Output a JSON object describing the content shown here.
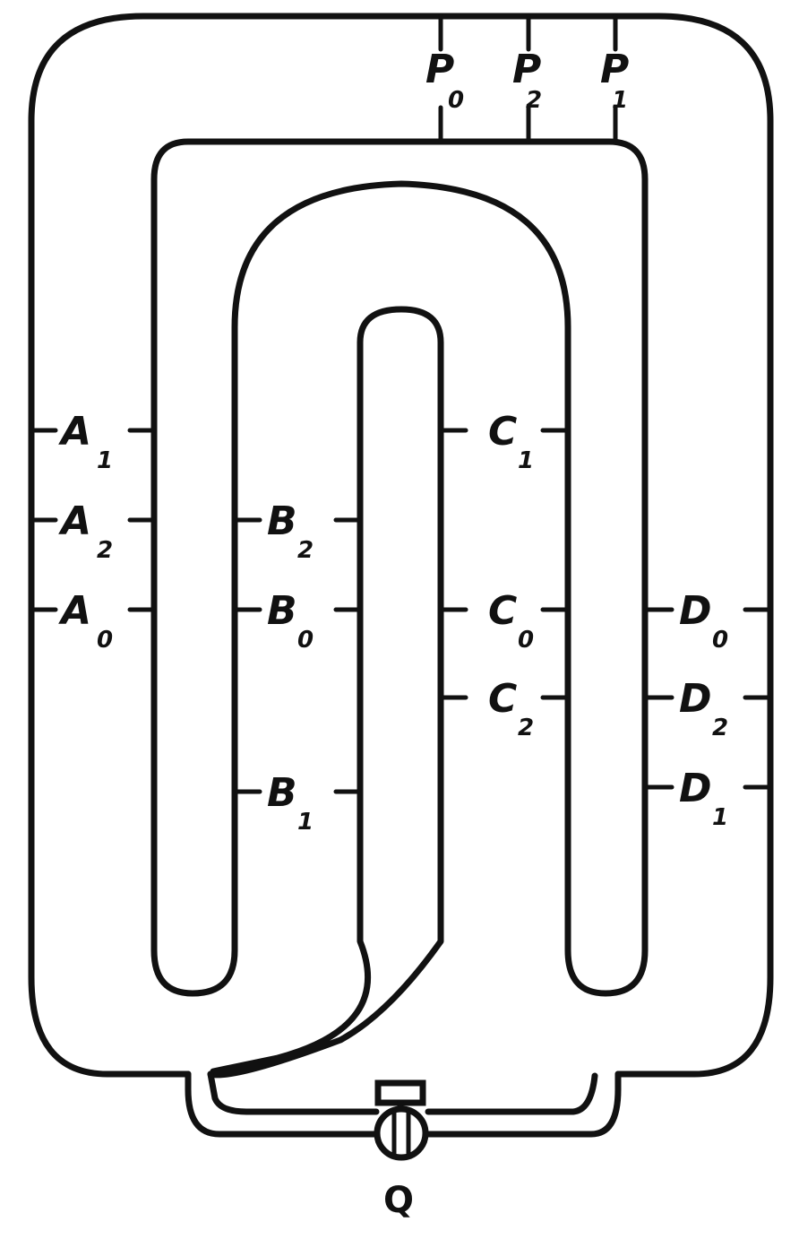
{
  "diagram": {
    "top_labels": [
      {
        "letter": "P",
        "sub": "0"
      },
      {
        "letter": "P",
        "sub": "2"
      },
      {
        "letter": "P",
        "sub": "1"
      }
    ],
    "a_labels": [
      {
        "letter": "A",
        "sub": "1"
      },
      {
        "letter": "A",
        "sub": "2"
      },
      {
        "letter": "A",
        "sub": "0"
      }
    ],
    "b_labels": [
      {
        "letter": "B",
        "sub": "2"
      },
      {
        "letter": "B",
        "sub": "0"
      },
      {
        "letter": "B",
        "sub": "1"
      }
    ],
    "c_labels": [
      {
        "letter": "C",
        "sub": "1"
      },
      {
        "letter": "C",
        "sub": "0"
      },
      {
        "letter": "C",
        "sub": "2"
      }
    ],
    "d_labels": [
      {
        "letter": "D",
        "sub": "0"
      },
      {
        "letter": "D",
        "sub": "2"
      },
      {
        "letter": "D",
        "sub": "1"
      }
    ],
    "valve_label": "Q",
    "ink_color": "#111111"
  }
}
